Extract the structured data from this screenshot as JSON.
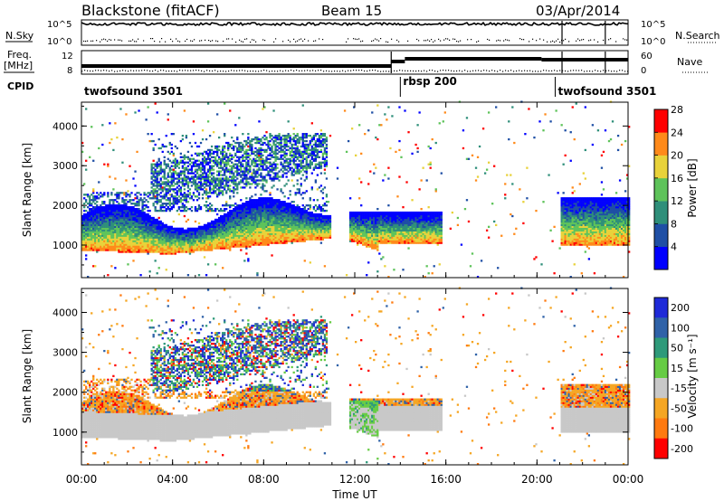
{
  "header": {
    "station": "Blackstone (fitACF)",
    "beam": "Beam 15",
    "date": "03/Apr/2014"
  },
  "summary": {
    "nsky_label": "N.Sky",
    "nsearch_label": "N.Search",
    "freq_label": "Freq.",
    "freq_unit": "[MHz]",
    "nave_label": "Nave",
    "cpid_label": "CPID",
    "noise_left_ticks": [
      "10^5",
      "10^0"
    ],
    "noise_right_ticks": [
      "10^5",
      "10^0"
    ],
    "freq_left_ticks": [
      "12",
      "8"
    ],
    "nave_right_ticks": [
      "60",
      "0"
    ]
  },
  "cpid_segments": [
    {
      "label": "twofsound 3501",
      "start_hour": 0,
      "end_hour": 14
    },
    {
      "label": "rbsp 200",
      "start_hour": 14,
      "end_hour": 20.8
    },
    {
      "label": "twofsound 3501",
      "start_hour": 20.8,
      "end_hour": 24
    }
  ],
  "chart_data": [
    {
      "type": "heatmap",
      "name": "power",
      "ylabel": "Slant Range [km]",
      "xlabel": "Time UT",
      "xlim_hours": [
        0,
        24
      ],
      "ylim": [
        180,
        4600
      ],
      "y_ticks": [
        "1000",
        "2000",
        "3000",
        "4000"
      ],
      "x_ticks": [
        "00:00",
        "04:00",
        "08:00",
        "12:00",
        "16:00",
        "20:00",
        "00:00"
      ],
      "colorbar": {
        "label": "Power [dB]",
        "ticks": [
          "4",
          "8",
          "12",
          "16",
          "20",
          "24",
          "28"
        ],
        "colors": [
          "#0000ff",
          "#1f4fa5",
          "#2f8f7a",
          "#5ec35a",
          "#e8d23a",
          "#ff8a1a",
          "#ff0000"
        ]
      },
      "data_gaps_hours": [
        [
          10.9,
          11.7
        ],
        [
          15.8,
          21.0
        ]
      ]
    },
    {
      "type": "heatmap",
      "name": "velocity",
      "ylabel": "Slant Range [km]",
      "xlabel": "Time UT",
      "xlim_hours": [
        0,
        24
      ],
      "ylim": [
        180,
        4600
      ],
      "y_ticks": [
        "1000",
        "2000",
        "3000",
        "4000"
      ],
      "x_ticks": [
        "00:00",
        "04:00",
        "08:00",
        "12:00",
        "16:00",
        "20:00",
        "00:00"
      ],
      "colorbar": {
        "label": "Velocity [m s⁻¹]",
        "ticks": [
          "200",
          "100",
          "50",
          "15",
          "-15",
          "-50",
          "-100",
          "-200"
        ],
        "colors": [
          "#1e2ad8",
          "#2f62a8",
          "#2e9a7a",
          "#66cc44",
          "#c8c8c8",
          "#f5a623",
          "#ff7a10",
          "#ff0000"
        ]
      }
    }
  ]
}
